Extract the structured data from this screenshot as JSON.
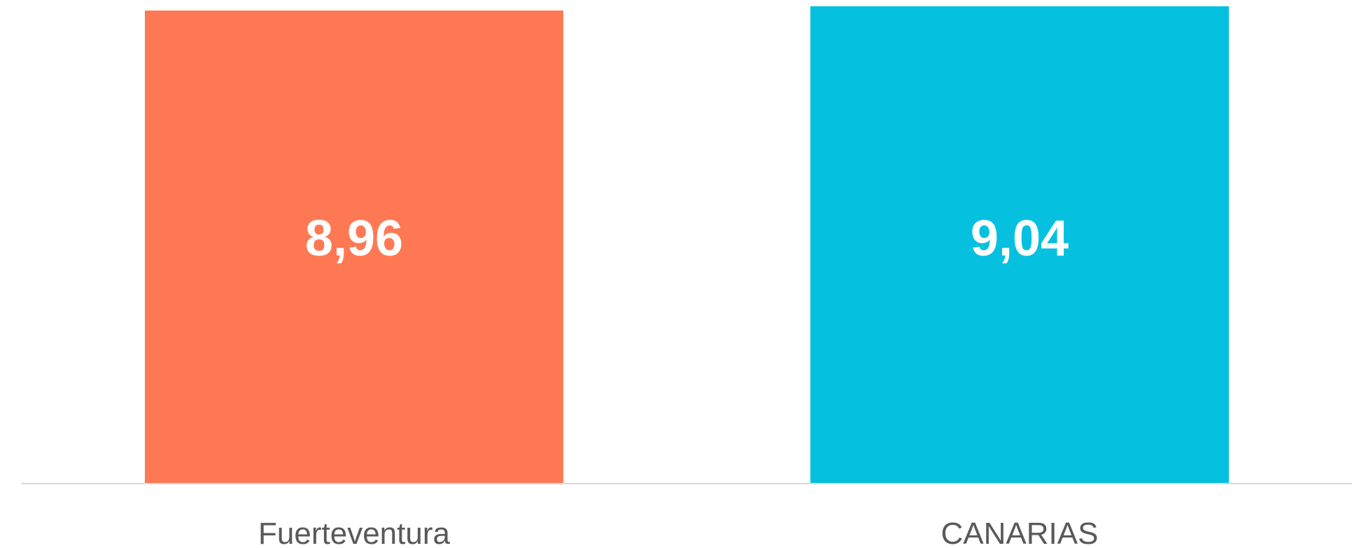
{
  "chart_data": {
    "type": "bar",
    "categories": [
      "Fuerteventura",
      "CANARIAS"
    ],
    "values": [
      8.96,
      9.04
    ],
    "data_labels": [
      "8,96",
      "9,04"
    ],
    "colors": [
      "#FF7854",
      "#05C1DF"
    ],
    "axis_color": "#d9d9d9",
    "label_color": "#595959",
    "title": "",
    "xlabel": "",
    "ylabel": "",
    "ylim": [
      0,
      9.04
    ],
    "grid": false,
    "legend": "none"
  }
}
